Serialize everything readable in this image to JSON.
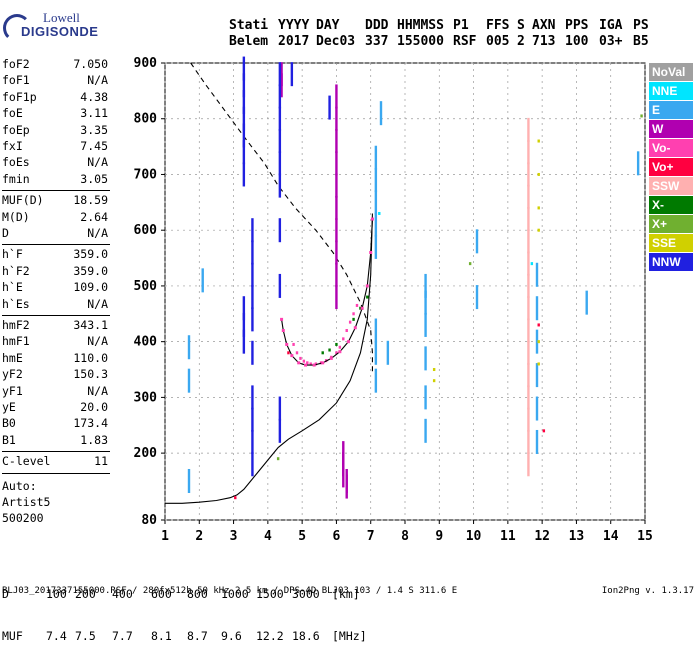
{
  "logo": {
    "line1": "Lowell",
    "line2": "DIGISONDE"
  },
  "header": {
    "labels": [
      "Stati",
      "YYYY",
      "DAY",
      "DDD",
      "HHMMSS",
      "P1",
      "FFS",
      "S",
      "AXN",
      "PPS",
      "IGA",
      "PS"
    ],
    "values": [
      "Belem",
      "2017",
      "Dec03",
      "337",
      "155000",
      "RSF",
      "005",
      "2",
      "713",
      "100",
      "03+",
      "B5"
    ]
  },
  "params_group1": [
    {
      "key": "foF2",
      "value": "7.050"
    },
    {
      "key": "foF1",
      "value": "N/A"
    },
    {
      "key": "foF1p",
      "value": "4.38"
    },
    {
      "key": "foE",
      "value": "3.11"
    },
    {
      "key": "foEp",
      "value": "3.35"
    },
    {
      "key": "fxI",
      "value": "7.45"
    },
    {
      "key": "foEs",
      "value": "N/A"
    },
    {
      "key": "fmin",
      "value": "3.05"
    }
  ],
  "params_group2": [
    {
      "key": "MUF(D)",
      "value": "18.59"
    },
    {
      "key": "M(D)",
      "value": "2.64"
    },
    {
      "key": "D",
      "value": "N/A"
    }
  ],
  "params_group3": [
    {
      "key": "h`F",
      "value": "359.0"
    },
    {
      "key": "h`F2",
      "value": "359.0"
    },
    {
      "key": "h`E",
      "value": "109.0"
    },
    {
      "key": "h`Es",
      "value": "N/A"
    }
  ],
  "params_group4": [
    {
      "key": "hmF2",
      "value": "343.1"
    },
    {
      "key": "hmF1",
      "value": "N/A"
    },
    {
      "key": "hmE",
      "value": "110.0"
    },
    {
      "key": "yF2",
      "value": "150.3"
    },
    {
      "key": "yF1",
      "value": "N/A"
    },
    {
      "key": "yE",
      "value": "20.0"
    },
    {
      "key": "B0",
      "value": "173.4"
    },
    {
      "key": "B1",
      "value": "1.83"
    }
  ],
  "params_group5": [
    {
      "key": "C-level",
      "value": "11"
    }
  ],
  "auto": {
    "line1": "Auto:",
    "line2": "Artist5",
    "line3": "500200"
  },
  "legend": [
    {
      "label": "NoVal",
      "color": "#a0a0a0"
    },
    {
      "label": "NNE",
      "color": "#00e5ff"
    },
    {
      "label": "E",
      "color": "#3aa8f0"
    },
    {
      "label": "W",
      "color": "#b000b0"
    },
    {
      "label": "Vo-",
      "color": "#ff40b0"
    },
    {
      "label": "Vo+",
      "color": "#ff0040"
    },
    {
      "label": "SSW",
      "color": "#ffb0b0"
    },
    {
      "label": "X-",
      "color": "#007a00"
    },
    {
      "label": "X+",
      "color": "#70b030"
    },
    {
      "label": "SSE",
      "color": "#d0d000"
    },
    {
      "label": "NNW",
      "color": "#2020e0"
    }
  ],
  "muf_table": {
    "d_label": "D",
    "d_values": [
      "100",
      "200",
      "400",
      "600",
      "800",
      "1000",
      "1500",
      "3000"
    ],
    "d_unit": "[km]",
    "muf_label": "MUF",
    "muf_values": [
      "7.4",
      "7.5",
      "7.7",
      "8.1",
      "8.7",
      "9.6",
      "12.2",
      "18.6"
    ],
    "muf_unit": "[MHz]"
  },
  "footer": "BLJ03_2017337155000.RSF / 280fx512h 50 kHz 2.5 km / DPS-4D BLJ03 103 / 1.4 S 311.6 E",
  "version": "Ion2Png v. 1.3.17",
  "chart_data": {
    "type": "scatter",
    "xlim": [
      1,
      15
    ],
    "ylim": [
      80,
      900
    ],
    "x_ticks": [
      1,
      2,
      3,
      4,
      5,
      6,
      7,
      8,
      9,
      10,
      11,
      12,
      13,
      14,
      15
    ],
    "y_ticks": [
      80,
      200,
      300,
      400,
      500,
      600,
      700,
      800,
      900
    ],
    "grid": true,
    "series": [
      {
        "name": "Vo-",
        "color": "#ff40b0",
        "x": [
          4.75,
          4.85,
          4.95,
          5.05,
          5.15,
          5.25,
          5.4,
          5.55,
          5.7,
          5.85,
          6.0,
          6.1,
          6.2,
          6.3,
          6.4,
          6.5,
          6.6
        ],
        "y": [
          395,
          380,
          370,
          365,
          362,
          360,
          360,
          362,
          366,
          372,
          380,
          390,
          405,
          420,
          435,
          450,
          465
        ]
      },
      {
        "name": "X-",
        "color": "#007a00",
        "x": [
          5.6,
          5.8,
          6.0,
          6.5,
          6.7,
          6.9
        ],
        "y": [
          380,
          385,
          395,
          440,
          460,
          480
        ]
      },
      {
        "name": "W",
        "color": "#b000b0",
        "x": [
          6.0,
          6.0,
          6.0,
          6.0,
          6.0,
          6.0,
          6.0,
          6.0,
          6.0,
          6.0,
          6.2,
          6.2,
          6.2,
          6.3,
          6.3,
          4.4,
          4.4
        ],
        "y": [
          840,
          800,
          760,
          720,
          680,
          640,
          600,
          560,
          520,
          480,
          200,
          180,
          160,
          150,
          140,
          880,
          860
        ]
      },
      {
        "name": "NNW",
        "color": "#2020e0",
        "x": [
          3.3,
          3.3,
          3.3,
          3.3,
          3.3,
          3.3,
          3.3,
          3.3,
          3.3,
          3.3,
          3.55,
          3.55,
          3.55,
          3.55,
          3.55,
          3.55,
          3.55,
          3.55,
          3.55,
          3.55,
          4.35,
          4.35,
          4.35,
          4.35,
          4.35,
          4.35,
          4.35,
          4.35,
          4.35,
          4.35,
          4.7,
          5.8
        ],
        "y": [
          890,
          860,
          830,
          800,
          770,
          740,
          700,
          460,
          430,
          400,
          600,
          560,
          520,
          480,
          440,
          380,
          300,
          260,
          220,
          180,
          880,
          840,
          800,
          760,
          720,
          680,
          600,
          500,
          280,
          240,
          880,
          820
        ]
      },
      {
        "name": "E",
        "color": "#3aa8f0",
        "x": [
          7.15,
          7.15,
          7.15,
          7.15,
          7.15,
          7.15,
          7.15,
          7.15,
          8.6,
          8.6,
          8.6,
          8.6,
          8.6,
          8.6,
          11.85,
          11.85,
          11.85,
          11.85,
          11.85,
          11.85,
          1.7,
          1.7,
          1.7,
          2.1,
          10.1,
          10.1,
          13.3,
          14.8,
          7.3,
          7.5
        ],
        "y": [
          730,
          690,
          650,
          610,
          570,
          420,
          380,
          330,
          500,
          470,
          430,
          370,
          300,
          240,
          520,
          460,
          400,
          340,
          280,
          220,
          390,
          330,
          150,
          510,
          580,
          480,
          470,
          720,
          810,
          380
        ]
      },
      {
        "name": "SSW",
        "color": "#ffb0b0",
        "x": [
          11.6,
          11.6,
          11.6,
          11.6,
          11.6,
          11.6,
          11.6,
          11.6,
          11.6,
          11.6,
          11.6,
          11.6,
          11.6,
          11.6,
          11.6,
          11.6
        ],
        "y": [
          780,
          740,
          700,
          660,
          620,
          580,
          540,
          500,
          460,
          420,
          380,
          340,
          300,
          260,
          220,
          180
        ]
      },
      {
        "name": "SSE",
        "color": "#d0d000",
        "x": [
          11.9,
          11.9,
          11.9,
          11.9,
          11.9,
          11.9,
          8.85,
          8.85
        ],
        "y": [
          760,
          700,
          640,
          600,
          400,
          360,
          350,
          330
        ]
      },
      {
        "name": "Vo+",
        "color": "#ff0040",
        "x": [
          3.05,
          4.6,
          11.9,
          12.05
        ],
        "y": [
          120,
          380,
          430,
          240
        ]
      },
      {
        "name": "X+",
        "color": "#70b030",
        "x": [
          9.9,
          14.9,
          4.3
        ],
        "y": [
          540,
          805,
          190
        ]
      },
      {
        "name": "NNE",
        "color": "#00e5ff",
        "x": [
          7.25,
          11.7
        ],
        "y": [
          630,
          540
        ]
      }
    ],
    "profile_curve": {
      "x": [
        1.0,
        1.5,
        2.0,
        2.5,
        2.9,
        3.1,
        3.3,
        3.5,
        3.7,
        3.9,
        4.1,
        4.3,
        4.6,
        5.0,
        5.5,
        6.0,
        6.4,
        6.7,
        6.9,
        7.0,
        7.05
      ],
      "y": [
        110,
        110,
        112,
        115,
        120,
        125,
        135,
        150,
        165,
        180,
        195,
        210,
        225,
        240,
        260,
        290,
        330,
        380,
        440,
        520,
        630
      ]
    },
    "trace_curve": {
      "x": [
        4.4,
        4.45,
        4.55,
        4.7,
        4.9,
        5.1,
        5.35,
        5.6,
        5.85,
        6.1,
        6.35,
        6.55,
        6.75,
        6.9,
        7.0,
        7.05
      ],
      "y": [
        440,
        420,
        395,
        375,
        362,
        358,
        358,
        362,
        370,
        382,
        400,
        425,
        460,
        500,
        560,
        620
      ]
    },
    "dashed_curve": {
      "x": [
        1.75,
        2.2,
        2.8,
        3.4,
        3.9,
        4.3,
        4.8,
        5.4,
        5.9,
        6.3,
        6.7,
        7.0,
        7.05,
        7.05
      ],
      "y": [
        900,
        860,
        810,
        760,
        720,
        680,
        640,
        600,
        560,
        520,
        470,
        420,
        380,
        340
      ]
    }
  }
}
